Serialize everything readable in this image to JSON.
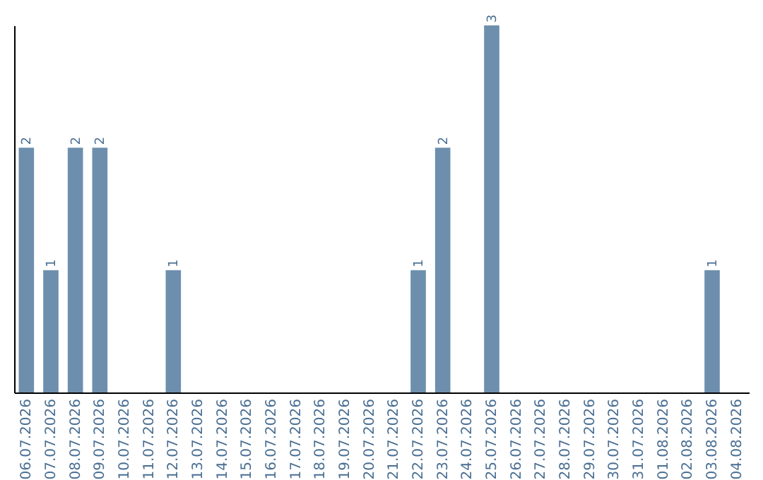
{
  "chart_data": {
    "type": "bar",
    "categories": [
      "06.07.2026",
      "07.07.2026",
      "08.07.2026",
      "09.07.2026",
      "10.07.2026",
      "11.07.2026",
      "12.07.2026",
      "13.07.2026",
      "14.07.2026",
      "15.07.2026",
      "16.07.2026",
      "17.07.2026",
      "18.07.2026",
      "19.07.2026",
      "20.07.2026",
      "21.07.2026",
      "22.07.2026",
      "23.07.2026",
      "24.07.2026",
      "25.07.2026",
      "26.07.2026",
      "27.07.2026",
      "28.07.2026",
      "29.07.2026",
      "30.07.2026",
      "31.07.2026",
      "01.08.2026",
      "02.08.2026",
      "03.08.2026",
      "04.08.2026"
    ],
    "values": [
      2,
      1,
      2,
      2,
      0,
      0,
      1,
      0,
      0,
      0,
      0,
      0,
      0,
      0,
      0,
      0,
      1,
      2,
      0,
      3,
      0,
      0,
      0,
      0,
      0,
      0,
      0,
      0,
      1,
      0
    ],
    "value_labels": [
      "2",
      "1",
      "2",
      "2",
      null,
      null,
      "1",
      null,
      null,
      null,
      null,
      null,
      null,
      null,
      null,
      null,
      "1",
      "2",
      null,
      "3",
      null,
      null,
      null,
      null,
      null,
      null,
      null,
      null,
      "1",
      null
    ],
    "color": "#6d8fad",
    "tick_labels": "x",
    "grid": false
  }
}
